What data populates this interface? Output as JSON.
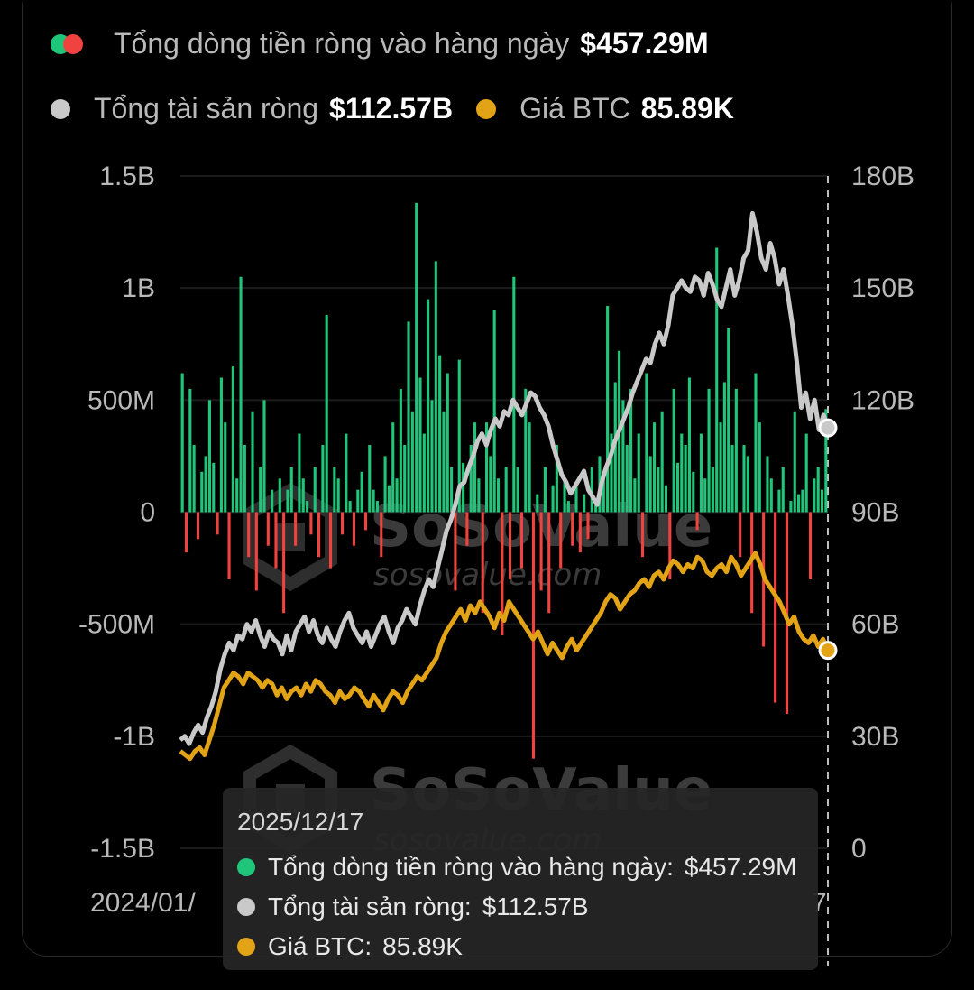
{
  "legend": {
    "inflow_label": "Tổng dòng tiền ròng vào hàng ngày",
    "inflow_value": "$457.29M",
    "assets_label": "Tổng tài sản ròng",
    "assets_value": "$112.57B",
    "btc_label": "Giá BTC",
    "btc_value": "85.89K"
  },
  "colors": {
    "inflow_positive": "#1fc67a",
    "inflow_negative": "#f0423e",
    "net_assets": "#c9c9c9",
    "btc_price": "#e3a317"
  },
  "watermark": {
    "brand": "SoSoValue",
    "site": "sosovalue.com"
  },
  "x_axis": {
    "start_label": "2024/01/",
    "end_label": "7"
  },
  "tooltip": {
    "date": "2025/12/17",
    "inflow_label": "Tổng dòng tiền ròng vào hàng ngày:",
    "inflow_value": "$457.29M",
    "assets_label": "Tổng tài sản ròng:",
    "assets_value": "$112.57B",
    "btc_label": "Giá BTC:",
    "btc_value": "85.89K"
  },
  "chart_data": {
    "type": "bar",
    "left_axis": {
      "ticks": [
        "1.5B",
        "1B",
        "500M",
        "0",
        "-500M",
        "-1B",
        "-1.5B"
      ],
      "range": [
        -1.5,
        1.5
      ],
      "unit": "B USD"
    },
    "right_axis": {
      "ticks": [
        "180B",
        "150B",
        "120B",
        "90B",
        "60B",
        "30B",
        "0"
      ],
      "range": [
        0,
        180
      ],
      "unit": "B USD"
    },
    "x_range": [
      "2024/01",
      "2025/12/17"
    ],
    "grid": true,
    "series": [
      {
        "name": "Tổng dòng tiền ròng vào hàng ngày",
        "type": "bar",
        "axis": "left",
        "values": [
          0.62,
          -0.18,
          0.55,
          0.3,
          -0.12,
          0.18,
          0.25,
          0.5,
          0.22,
          -0.1,
          0.6,
          0.4,
          -0.3,
          0.65,
          0.15,
          1.05,
          0.3,
          -0.2,
          0.45,
          -0.35,
          0.2,
          0.5,
          -0.15,
          0.1,
          -0.25,
          0.15,
          -0.45,
          0.1,
          0.2,
          -0.15,
          0.35,
          0.15,
          0.05,
          -0.1,
          0.2,
          -0.2,
          0.3,
          0.88,
          -0.25,
          0.2,
          0.15,
          -0.1,
          0.35,
          0.05,
          -0.15,
          0.1,
          0.18,
          -0.08,
          0.3,
          0.1,
          0.05,
          -0.2,
          0.25,
          0.12,
          0.4,
          0.15,
          0.55,
          0.3,
          0.85,
          0.45,
          1.38,
          0.6,
          0.35,
          0.95,
          0.5,
          1.12,
          0.7,
          0.45,
          0.62,
          0.2,
          -0.35,
          0.68,
          0.22,
          -0.15,
          0.3,
          0.4,
          0.15,
          -0.45,
          0.4,
          0.25,
          0.9,
          0.15,
          -0.55,
          0.2,
          -0.3,
          1.05,
          0.2,
          -0.25,
          0.55,
          0.4,
          -1.1,
          0.08,
          -0.35,
          0.2,
          -0.45,
          0.12,
          0.3,
          -0.25,
          0.15,
          0.05,
          -0.15,
          0.12,
          -0.18,
          0.08,
          -0.12,
          0.2,
          0.05,
          0.25,
          0.15,
          0.92,
          0.35,
          0.58,
          0.72,
          0.5,
          0.3,
          0.55,
          0.15,
          0.35,
          -0.2,
          0.62,
          0.25,
          0.4,
          0.2,
          0.45,
          0.12,
          -0.3,
          0.55,
          0.22,
          0.35,
          0.3,
          0.6,
          0.18,
          -0.08,
          0.35,
          0.15,
          0.55,
          0.2,
          1.18,
          0.4,
          0.58,
          0.82,
          0.3,
          0.55,
          -0.2,
          0.3,
          0.25,
          -0.45,
          0.62,
          0.4,
          -0.6,
          0.25,
          0.15,
          -0.85,
          0.1,
          0.2,
          -0.9,
          0.05,
          0.45,
          0.08,
          0.1,
          0.35,
          -0.3,
          0.15,
          0.2,
          0.1,
          0.46
        ]
      },
      {
        "name": "Tổng tài sản ròng",
        "type": "line",
        "axis": "right",
        "values": [
          29,
          30,
          28,
          31,
          33,
          31,
          35,
          38,
          42,
          48,
          52,
          55,
          53,
          57,
          56,
          60,
          58,
          61,
          57,
          54,
          58,
          56,
          55,
          52,
          57,
          53,
          58,
          60,
          62,
          58,
          61,
          57,
          55,
          59,
          56,
          54,
          58,
          61,
          63,
          59,
          57,
          55,
          58,
          54,
          57,
          60,
          62,
          58,
          55,
          59,
          61,
          64,
          62,
          60,
          65,
          69,
          72,
          70,
          75,
          80,
          85,
          88,
          92,
          97,
          98,
          102,
          105,
          109,
          111,
          108,
          112,
          115,
          113,
          117,
          116,
          120,
          118,
          116,
          119,
          122,
          121,
          118,
          116,
          113,
          108,
          104,
          100,
          98,
          95,
          97,
          99,
          101,
          96,
          94,
          92,
          98,
          102,
          105,
          109,
          112,
          115,
          118,
          122,
          125,
          128,
          131,
          130,
          135,
          138,
          135,
          140,
          148,
          150,
          152,
          150,
          149,
          153,
          152,
          148,
          154,
          151,
          147,
          145,
          150,
          155,
          148,
          152,
          158,
          160,
          170,
          165,
          158,
          155,
          162,
          158,
          151,
          155,
          148,
          140,
          130,
          118,
          122,
          115,
          120,
          112,
          116,
          112.57
        ]
      },
      {
        "name": "Giá BTC",
        "type": "line",
        "axis": "right",
        "values": [
          26,
          25,
          24,
          26,
          27,
          25,
          29,
          33,
          38,
          43,
          45,
          47,
          46,
          44,
          47,
          46,
          45,
          43,
          45,
          44,
          41,
          43,
          40,
          42,
          43,
          41,
          44,
          42,
          45,
          44,
          42,
          41,
          39,
          42,
          40,
          41,
          43,
          42,
          40,
          38,
          41,
          39,
          37,
          40,
          42,
          41,
          39,
          42,
          44,
          46,
          45,
          47,
          49,
          51,
          55,
          58,
          60,
          62,
          64,
          61,
          65,
          63,
          66,
          64,
          62,
          59,
          63,
          61,
          66,
          64,
          62,
          60,
          58,
          56,
          58,
          55,
          52,
          55,
          53,
          51,
          54,
          56,
          53,
          55,
          57,
          59,
          61,
          63,
          66,
          68,
          67,
          64,
          66,
          68,
          69,
          71,
          72,
          70,
          73,
          74,
          72,
          75,
          77,
          76,
          74,
          76,
          75,
          78,
          77,
          74,
          73,
          75,
          76,
          74,
          78,
          76,
          73,
          75,
          77,
          79,
          76,
          72,
          70,
          68,
          66,
          63,
          60,
          62,
          58,
          56,
          55,
          57,
          54,
          56,
          53
        ]
      }
    ],
    "highlight_point": {
      "date": "2025/12/17",
      "inflow": "$457.29M",
      "net_assets": "$112.57B",
      "btc": "85.89K"
    }
  }
}
